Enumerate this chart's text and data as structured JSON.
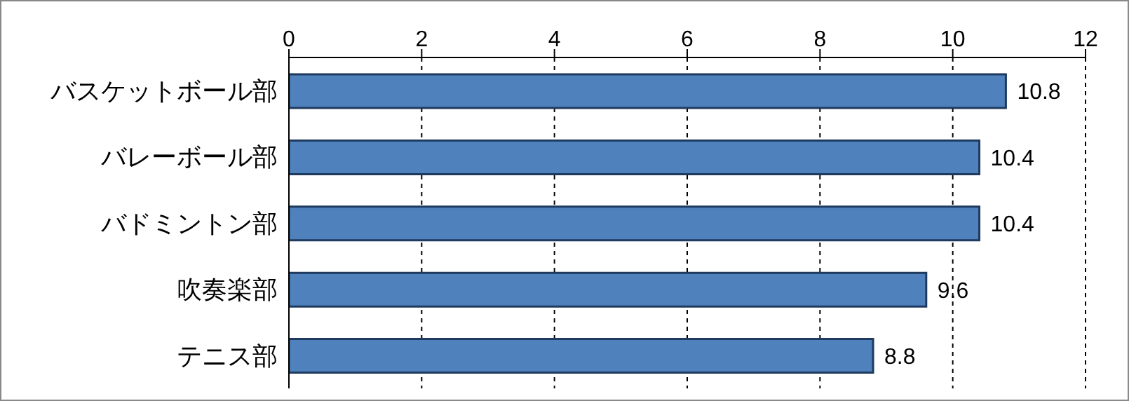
{
  "chart_data": {
    "type": "bar",
    "orientation": "horizontal",
    "categories": [
      "バスケットボール部",
      "バレーボール部",
      "バドミントン部",
      "吹奏楽部",
      "テニス部"
    ],
    "values": [
      10.8,
      10.4,
      10.4,
      9.6,
      8.8
    ],
    "color": "#4f81bd",
    "xlim": [
      0,
      12
    ],
    "xticks": [
      0,
      2,
      4,
      6,
      8,
      10,
      12
    ],
    "grid": "x",
    "data_labels": true
  }
}
